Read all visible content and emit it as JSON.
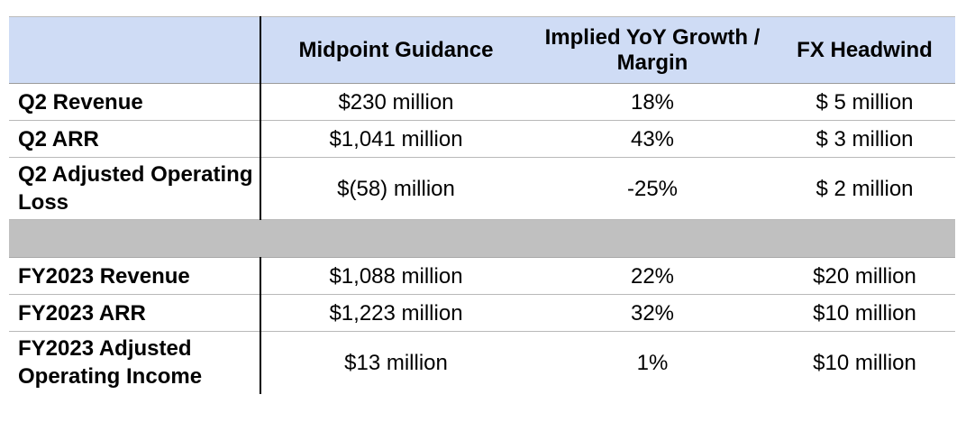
{
  "table": {
    "headers": [
      "",
      "Midpoint Guidance",
      "Implied YoY Growth / Margin",
      "FX Headwind"
    ],
    "rows": [
      {
        "label": "Q2 Revenue",
        "midpoint": "$230 million",
        "growth": "18%",
        "fx": "$ 5 million"
      },
      {
        "label": "Q2 ARR",
        "midpoint": "$1,041 million",
        "growth": "43%",
        "fx": "$ 3 million"
      },
      {
        "label": "Q2 Adjusted Operating Loss",
        "midpoint": "$(58) million",
        "growth": "-25%",
        "fx": "$ 2 million"
      },
      {
        "label": "FY2023 Revenue",
        "midpoint": "$1,088 million",
        "growth": "22%",
        "fx": "$20 million"
      },
      {
        "label": "FY2023 ARR",
        "midpoint": "$1,223 million",
        "growth": "32%",
        "fx": "$10 million"
      },
      {
        "label": "FY2023 Adjusted Operating Income",
        "midpoint": "$13 million",
        "growth": "1%",
        "fx": "$10 million"
      }
    ]
  },
  "colors": {
    "header_background": "#cfdcf5",
    "separator_background": "#c0c0c0"
  }
}
